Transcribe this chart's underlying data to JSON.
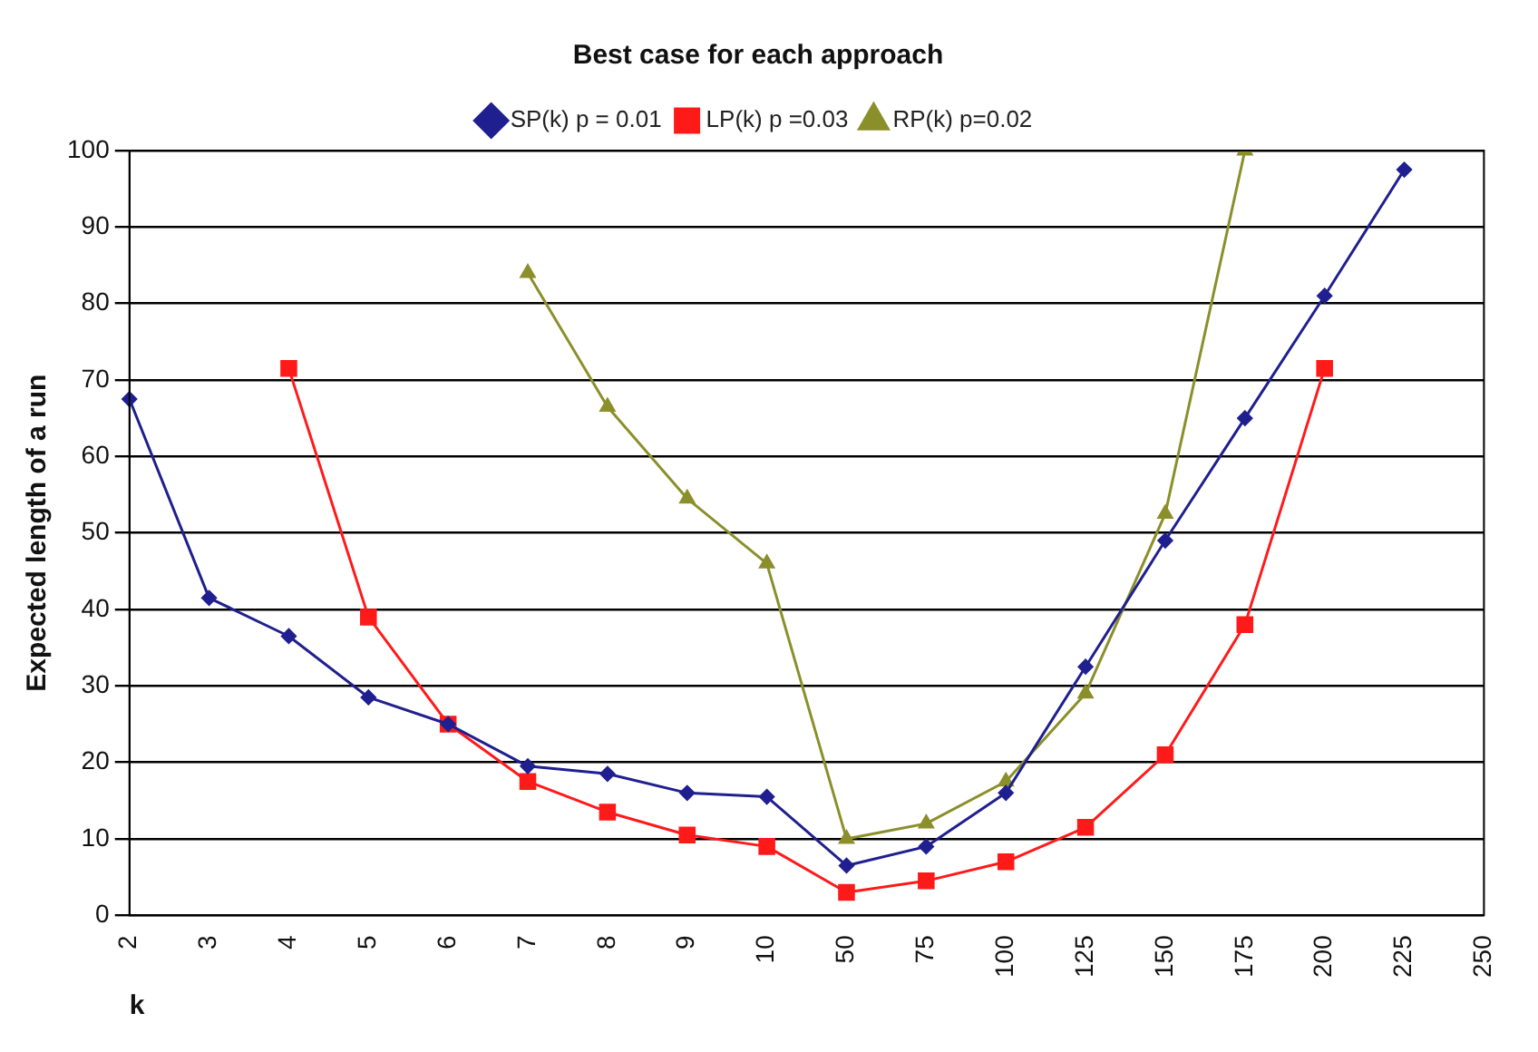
{
  "chart_data": {
    "type": "line",
    "title": "Best case for each approach",
    "xlabel": "k",
    "ylabel": "Expected length of a run",
    "categories": [
      "2",
      "3",
      "4",
      "5",
      "6",
      "7",
      "8",
      "9",
      "10",
      "50",
      "75",
      "100",
      "125",
      "150",
      "175",
      "200",
      "225",
      "250"
    ],
    "ylim": [
      0,
      100
    ],
    "yticks": [
      0,
      10,
      20,
      30,
      40,
      50,
      60,
      70,
      80,
      90,
      100
    ],
    "grid": "y",
    "legend": "top",
    "series": [
      {
        "name": "SP(k) p = 0.01",
        "color": "#1f1f8f",
        "marker": "diamond",
        "values": [
          67.5,
          41.5,
          36.5,
          28.5,
          25,
          19.5,
          18.5,
          16,
          15.5,
          6.5,
          9,
          16,
          32.5,
          49,
          65,
          81,
          97.5,
          null
        ]
      },
      {
        "name": "LP(k) p =0.03",
        "color": "#ff1a1a",
        "marker": "square",
        "values": [
          null,
          null,
          71.5,
          39,
          25,
          17.5,
          13.5,
          10.5,
          9,
          3,
          4.5,
          7,
          11.5,
          21,
          38,
          71.5,
          null,
          null
        ]
      },
      {
        "name": "RP(k) p=0.02",
        "color": "#8b8f2a",
        "marker": "triangle",
        "values": [
          null,
          null,
          null,
          null,
          null,
          84,
          66.5,
          54.5,
          46,
          10,
          12,
          17.5,
          29,
          52.5,
          100,
          null,
          null,
          null
        ]
      }
    ]
  }
}
